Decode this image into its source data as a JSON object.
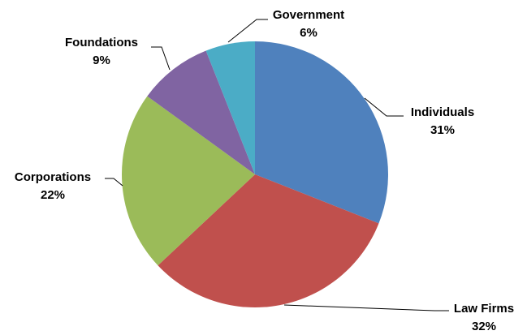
{
  "chart_data": {
    "type": "pie",
    "title": "",
    "legend": "none",
    "slices": [
      {
        "label": "Individuals",
        "value": 31,
        "value_label": "31%",
        "color": "#4F81BD"
      },
      {
        "label": "Law Firms",
        "value": 32,
        "value_label": "32%",
        "color": "#C0504D"
      },
      {
        "label": "Corporations",
        "value": 22,
        "value_label": "22%",
        "color": "#9BBB59"
      },
      {
        "label": "Foundations",
        "value": 9,
        "value_label": "9%",
        "color": "#8064A2"
      },
      {
        "label": "Government",
        "value": 6,
        "value_label": "6%",
        "color": "#4BACC6"
      }
    ]
  }
}
